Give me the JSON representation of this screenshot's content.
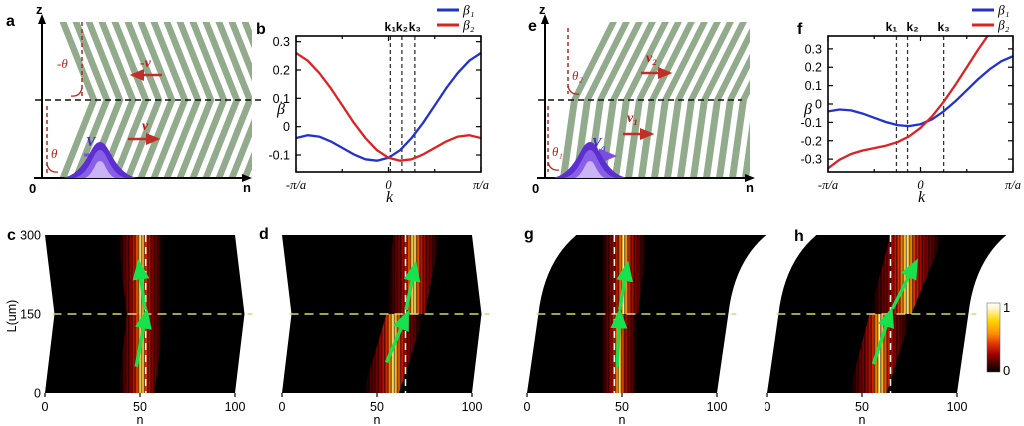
{
  "panels": {
    "a": {
      "label": "a",
      "z": "z",
      "n": "n",
      "zero": "0",
      "theta_lower": "θ",
      "theta_upper": "-θ",
      "v_upper": "-v",
      "v_lower": "v",
      "vg_v": "V",
      "vg_sub": "g"
    },
    "b": {
      "label": "b",
      "ylabel": "β",
      "xlabel": "k"
    },
    "e": {
      "label": "e",
      "z": "z",
      "n": "n",
      "zero": "0",
      "theta_lower": "θ₁",
      "theta_upper": "θ₂",
      "v_upper": "v₂",
      "v_lower": "v₁",
      "vg_v": "V",
      "vg_sub": "g"
    },
    "f": {
      "label": "f",
      "ylabel": "β",
      "xlabel": "k"
    },
    "c": {
      "label": "c",
      "ylabel": "L(um)",
      "xlabel": "n"
    },
    "d": {
      "label": "d",
      "xlabel": "n"
    },
    "g": {
      "label": "g",
      "xlabel": "n"
    },
    "h": {
      "label": "h",
      "xlabel": "n"
    }
  },
  "colorbar": {
    "max_label": "1",
    "min_label": "0"
  },
  "colors": {
    "stripe_green": "#92ab8c",
    "curve_blue": "#2233cc",
    "curve_red": "#dd2222",
    "dash_red": "#b02820",
    "arrow_green": "#17e24e",
    "dash_yellow": "#d8d874",
    "vg_purple": "#7a4fe0"
  },
  "chart_data": [
    {
      "id": "b",
      "type": "line",
      "xlabel": "k",
      "ylabel": "β",
      "x_units": "pi/a",
      "xlim": [
        -1,
        1
      ],
      "ylim": [
        -0.16,
        0.32
      ],
      "x": [
        -1,
        -0.875,
        -0.75,
        -0.625,
        -0.5,
        -0.375,
        -0.25,
        -0.125,
        0,
        0.125,
        0.25,
        0.375,
        0.5,
        0.625,
        0.75,
        0.875,
        1
      ],
      "series": [
        {
          "name": "β₁",
          "color": "#2233cc",
          "values": [
            -0.04,
            -0.03,
            -0.035,
            -0.052,
            -0.075,
            -0.098,
            -0.115,
            -0.12,
            -0.11,
            -0.083,
            -0.04,
            0.014,
            0.075,
            0.136,
            0.19,
            0.233,
            0.26
          ]
        },
        {
          "name": "β₂",
          "color": "#dd2222",
          "values": [
            0.26,
            0.233,
            0.19,
            0.136,
            0.075,
            0.014,
            -0.04,
            -0.083,
            -0.11,
            -0.12,
            -0.115,
            -0.098,
            -0.075,
            -0.052,
            -0.035,
            -0.03,
            -0.04
          ]
        }
      ],
      "xticks": [
        {
          "v": -1,
          "label": "-π/a"
        },
        {
          "v": 0,
          "label": "0"
        },
        {
          "v": 1,
          "label": "π/a"
        }
      ],
      "xticks_minor": [
        -0.5,
        0.5
      ],
      "yticks": [
        {
          "v": 0.3,
          "label": "0.3"
        },
        {
          "v": 0.2,
          "label": "0.2"
        },
        {
          "v": 0.1,
          "label": "0.1"
        },
        {
          "v": 0,
          "label": "0"
        },
        {
          "v": -0.1,
          "label": "-0.1"
        }
      ],
      "klines": [
        {
          "v": 0.02,
          "label": "k₁",
          "dx": 0
        },
        {
          "v": 0.145,
          "label": "k₂",
          "dx": 0
        },
        {
          "v": 0.285,
          "label": "k₃",
          "dx": 0
        }
      ],
      "legend": [
        {
          "label": "β₁",
          "color": "#2233cc"
        },
        {
          "label": "β₂",
          "color": "#dd2222"
        }
      ],
      "legend_position": "top-right",
      "grid": false
    },
    {
      "id": "f",
      "type": "line",
      "xlabel": "k",
      "ylabel": "β",
      "x_units": "pi/a",
      "xlim": [
        -1,
        1
      ],
      "ylim": [
        -0.37,
        0.37
      ],
      "x": [
        -1,
        -0.875,
        -0.75,
        -0.625,
        -0.5,
        -0.375,
        -0.25,
        -0.125,
        0,
        0.125,
        0.25,
        0.375,
        0.5,
        0.625,
        0.75,
        0.875,
        1
      ],
      "series": [
        {
          "name": "β₁",
          "color": "#2233cc",
          "values": [
            -0.04,
            -0.03,
            -0.035,
            -0.052,
            -0.075,
            -0.098,
            -0.115,
            -0.12,
            -0.11,
            -0.083,
            -0.04,
            0.014,
            0.075,
            0.136,
            0.19,
            0.233,
            0.26
          ]
        },
        {
          "name": "β₂",
          "color": "#dd2222",
          "values": [
            -0.35,
            -0.303,
            -0.272,
            -0.253,
            -0.24,
            -0.227,
            -0.208,
            -0.177,
            -0.13,
            -0.067,
            0.012,
            0.103,
            0.2,
            0.297,
            0.388,
            0.467,
            0.53
          ]
        }
      ],
      "xticks": [
        {
          "v": -1,
          "label": "-π/a"
        },
        {
          "v": 0,
          "label": "0"
        },
        {
          "v": 1,
          "label": "π/a"
        }
      ],
      "xticks_minor": [
        -0.5,
        0.5
      ],
      "yticks": [
        {
          "v": 0.3,
          "label": "0.3"
        },
        {
          "v": 0.2,
          "label": "0.2"
        },
        {
          "v": 0.1,
          "label": "0.1"
        },
        {
          "v": 0,
          "label": "0"
        },
        {
          "v": -0.1,
          "label": "-0.1"
        },
        {
          "v": -0.2,
          "label": "-0.2"
        },
        {
          "v": -0.3,
          "label": "-0.3"
        }
      ],
      "klines": [
        {
          "v": -0.26,
          "label": "k₁",
          "dx": -5
        },
        {
          "v": -0.14,
          "label": "k₂",
          "dx": 5
        },
        {
          "v": 0.25,
          "label": "k₃",
          "dx": 0
        }
      ],
      "legend": [
        {
          "label": "β₁",
          "color": "#2233cc"
        },
        {
          "label": "β₂",
          "color": "#dd2222"
        }
      ],
      "legend_position": "top-right",
      "grid": false
    },
    {
      "id": "c",
      "type": "heatmap",
      "xlabel": "n",
      "ylabel": "L(um)",
      "xlim": [
        0,
        100
      ],
      "ylim": [
        0,
        300
      ],
      "xticks": [
        {
          "v": 0,
          "label": "0"
        },
        {
          "v": 50,
          "label": "50"
        },
        {
          "v": 100,
          "label": "100"
        }
      ],
      "yticks": [
        {
          "v": 300,
          "label": "300"
        },
        {
          "v": 150,
          "label": "150"
        },
        {
          "v": 0,
          "label": "0"
        }
      ],
      "region": {
        "mid_n": 5,
        "top_n": 0,
        "curved": false
      },
      "beam": {
        "centers_n": [
          48,
          53,
          50.5
        ],
        "half_widths_n": [
          9.5,
          10,
          12.5
        ]
      },
      "vline_n": 53,
      "hline_L": 150,
      "arrows": [
        {
          "from": [
            48,
            50
          ],
          "to": [
            52.8,
            142
          ]
        },
        {
          "from": [
            52.6,
            158
          ],
          "to": [
            49.8,
            235
          ]
        }
      ],
      "intensity_range": [
        0,
        1
      ]
    },
    {
      "id": "d",
      "type": "heatmap",
      "xlabel": "n",
      "xlim": [
        0,
        100
      ],
      "ylim": [
        0,
        300
      ],
      "xticks": [
        {
          "v": 0,
          "label": "0"
        },
        {
          "v": 50,
          "label": "50"
        },
        {
          "v": 100,
          "label": "100"
        }
      ],
      "region": {
        "mid_n": 5,
        "top_n": 0,
        "curved": false
      },
      "beam": {
        "centers_n": [
          52,
          65,
          71
        ],
        "half_widths_n": [
          9.5,
          10,
          12.5
        ]
      },
      "vline_n": 65,
      "hline_L": 150,
      "arrows": [
        {
          "from": [
            55,
            58
          ],
          "to": [
            64.7,
            140
          ]
        },
        {
          "from": [
            65.3,
            158
          ],
          "to": [
            69.5,
            232
          ]
        }
      ],
      "intensity_range": [
        0,
        1
      ]
    },
    {
      "id": "g",
      "type": "heatmap",
      "xlabel": "n",
      "xlim": [
        0,
        100
      ],
      "ylim": [
        0,
        300
      ],
      "xticks": [
        {
          "v": 0,
          "label": "0"
        },
        {
          "v": 50,
          "label": "50"
        },
        {
          "v": 100,
          "label": "100"
        }
      ],
      "region": {
        "mid_n": 6,
        "top_n": 26,
        "curved": true
      },
      "beam": {
        "centers_n": [
          48,
          48.5,
          51
        ],
        "half_widths_n": [
          9.5,
          10,
          12.5
        ]
      },
      "vline_n": 46,
      "hline_L": 150,
      "arrows": [
        {
          "from": [
            47.5,
            50
          ],
          "to": [
            48.6,
            142
          ]
        },
        {
          "from": [
            48.8,
            158
          ],
          "to": [
            52.3,
            232
          ]
        }
      ],
      "intensity_range": [
        0,
        1
      ]
    },
    {
      "id": "h",
      "type": "heatmap",
      "xlabel": "n",
      "xlim": [
        0,
        100
      ],
      "ylim": [
        0,
        300
      ],
      "xticks": [
        {
          "v": 0,
          "label": "0"
        },
        {
          "v": 50,
          "label": "50"
        },
        {
          "v": 100,
          "label": "100"
        }
      ],
      "region": {
        "mid_n": 6,
        "top_n": 26,
        "curved": true
      },
      "beam": {
        "centers_n": [
          53,
          65,
          79
        ],
        "half_widths_n": [
          10,
          11,
          14
        ]
      },
      "vline_n": 65,
      "hline_L": 150,
      "arrows": [
        {
          "from": [
            56,
            55
          ],
          "to": [
            64.3,
            145
          ]
        },
        {
          "from": [
            66,
            160
          ],
          "to": [
            77,
            238
          ]
        }
      ],
      "intensity_range": [
        0,
        1
      ]
    }
  ]
}
